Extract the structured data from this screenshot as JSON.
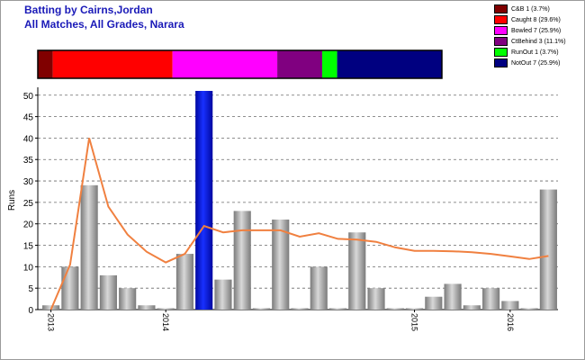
{
  "header": {
    "title_line1": "Batting by Cairns,Jordan",
    "title_line2": "All Matches, All Grades, Narara"
  },
  "colors": {
    "title": "#1a1ab8",
    "bar": "#a0a0a0",
    "bar_highlight": "#0010c8",
    "line": "#f08040",
    "grid": "#6a6a6a"
  },
  "legend": [
    {
      "label": "C&B 1 (3.7%)",
      "color": "#800000"
    },
    {
      "label": "Caught 8 (29.6%)",
      "color": "#ff0000"
    },
    {
      "label": "Bowled 7 (25.9%)",
      "color": "#ff00ff"
    },
    {
      "label": "CtBehind 3 (11.1%)",
      "color": "#800080"
    },
    {
      "label": "RunOut 1 (3.7%)",
      "color": "#00ff00"
    },
    {
      "label": "NotOut 7 (25.9%)",
      "color": "#000080"
    }
  ],
  "chart_data": {
    "type": "bar",
    "ylabel": "Runs",
    "ylim": [
      0,
      51
    ],
    "yticks": [
      0,
      5,
      10,
      15,
      20,
      25,
      30,
      35,
      40,
      45,
      50
    ],
    "xtick_labels": [
      {
        "label": "2013",
        "index": 0
      },
      {
        "label": "2014",
        "index": 6
      },
      {
        "label": "2015",
        "index": 19
      },
      {
        "label": "2016",
        "index": 24
      }
    ],
    "dismissal_bar": [
      {
        "name": "C&B",
        "count": 1,
        "color": "#800000"
      },
      {
        "name": "Caught",
        "count": 8,
        "color": "#ff0000"
      },
      {
        "name": "Bowled",
        "count": 7,
        "color": "#ff00ff"
      },
      {
        "name": "CtBehind",
        "count": 3,
        "color": "#800080"
      },
      {
        "name": "RunOut",
        "count": 1,
        "color": "#00ff00"
      },
      {
        "name": "NotOut",
        "count": 7,
        "color": "#000080"
      }
    ],
    "values": [
      1,
      10,
      29,
      8,
      5,
      1,
      0,
      13,
      51,
      7,
      23,
      0,
      21,
      0,
      10,
      0,
      18,
      5,
      0,
      0,
      3,
      6,
      1,
      5,
      2,
      0,
      28
    ],
    "highlight_index": 8,
    "average_line": [
      null,
      10.5,
      40,
      24,
      17.5,
      13.5,
      11,
      13,
      19.5,
      18,
      18.5,
      18.5,
      18.5,
      17,
      17.8,
      16.5,
      16.3,
      15.8,
      14.5,
      13.7,
      13.7,
      13.6,
      13.4,
      13,
      12.4,
      11.8,
      12.5
    ]
  }
}
